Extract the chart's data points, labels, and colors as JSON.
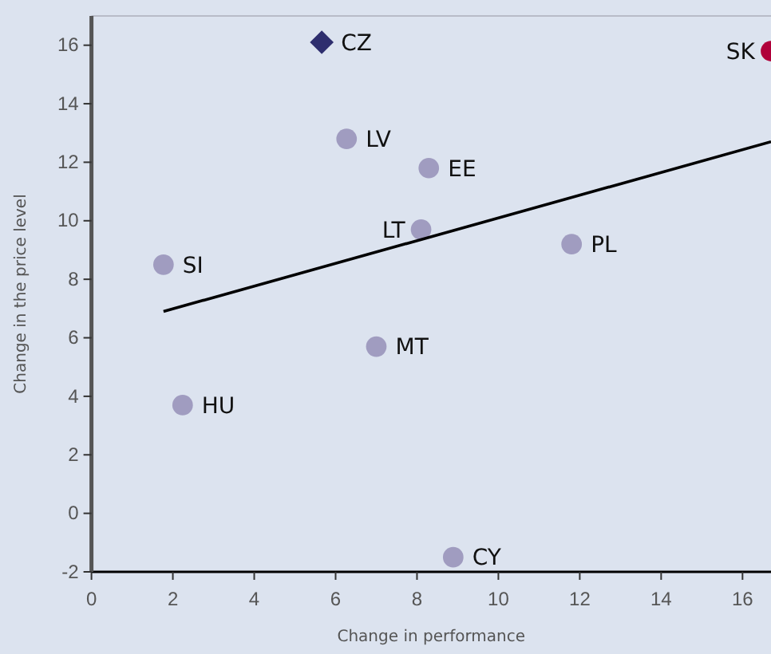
{
  "chart_data": {
    "type": "scatter",
    "xlabel": "Change in performance",
    "ylabel": "Change in the price level",
    "xlim": [
      0,
      16.7
    ],
    "ylim": [
      -2,
      17
    ],
    "xticks": [
      0,
      2,
      4,
      6,
      8,
      10,
      12,
      14,
      16
    ],
    "yticks": [
      -2,
      0,
      2,
      4,
      6,
      8,
      10,
      12,
      14,
      16
    ],
    "grid": false,
    "series": [
      {
        "marker": "circle",
        "color": "#a09cc0",
        "x": [
          6.27,
          8.29,
          8.1,
          11.8,
          1.77,
          7.0,
          2.24,
          8.89
        ],
        "values": [
          12.8,
          11.8,
          9.7,
          9.2,
          8.5,
          5.7,
          3.7,
          -1.5
        ]
      },
      {
        "marker": "diamond",
        "color": "#2e2e6e",
        "x": [
          5.66
        ],
        "values": [
          16.1
        ]
      },
      {
        "marker": "circle",
        "color": "#b0003a",
        "x": [
          16.7
        ],
        "values": [
          15.8
        ]
      },
      {
        "type": "line",
        "line_style": "solid",
        "color": "#000000",
        "x": [
          1.77,
          16.7
        ],
        "values": [
          6.9,
          12.7
        ]
      }
    ],
    "annotations": [
      {
        "text": "CZ",
        "x": 5.66,
        "y": 16.1
      },
      {
        "text": "SK",
        "x": 16.7,
        "y": 15.8
      },
      {
        "text": "LV",
        "x": 6.27,
        "y": 12.8
      },
      {
        "text": "EE",
        "x": 8.29,
        "y": 11.8
      },
      {
        "text": "LT",
        "x": 8.1,
        "y": 9.7
      },
      {
        "text": "PL",
        "x": 11.8,
        "y": 9.2
      },
      {
        "text": "SI",
        "x": 1.77,
        "y": 8.5
      },
      {
        "text": "MT",
        "x": 7.0,
        "y": 5.7
      },
      {
        "text": "HU",
        "x": 2.24,
        "y": 3.7
      },
      {
        "text": "CY",
        "x": 8.89,
        "y": -1.5
      }
    ]
  }
}
